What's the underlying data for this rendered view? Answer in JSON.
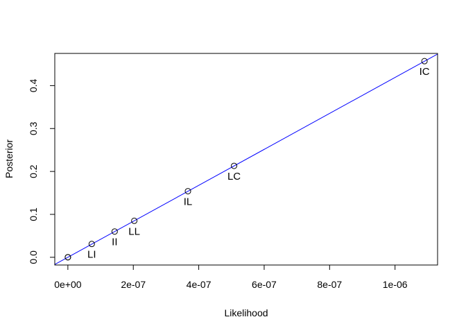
{
  "chart_data": {
    "type": "scatter",
    "title": "",
    "xlabel": "Likelihood",
    "ylabel": "Posterior",
    "xlim": [
      -4e-08,
      1.13e-06
    ],
    "ylim": [
      -0.018,
      0.475
    ],
    "x_ticks": [
      0,
      2e-07,
      4e-07,
      6e-07,
      8e-07,
      1e-06
    ],
    "x_tick_labels": [
      "0e+00",
      "2e-07",
      "4e-07",
      "6e-07",
      "8e-07",
      "1e-06"
    ],
    "y_ticks": [
      0.0,
      0.1,
      0.2,
      0.3,
      0.4
    ],
    "y_tick_labels": [
      "0.0",
      "0.1",
      "0.2",
      "0.3",
      "0.4"
    ],
    "grid": false,
    "legend": "none",
    "points": [
      {
        "label": "",
        "x": 0,
        "y": 0.0
      },
      {
        "label": "",
        "x": 1e-10,
        "y": 0.0002
      },
      {
        "label": "LI",
        "x": 7.3e-08,
        "y": 0.031
      },
      {
        "label": "II",
        "x": 1.43e-07,
        "y": 0.06
      },
      {
        "label": "LL",
        "x": 2.03e-07,
        "y": 0.085
      },
      {
        "label": "IL",
        "x": 3.67e-07,
        "y": 0.154
      },
      {
        "label": "LC",
        "x": 5.08e-07,
        "y": 0.213
      },
      {
        "label": "IC",
        "x": 1.09e-06,
        "y": 0.457
      }
    ],
    "fit_line": {
      "intercept": 0,
      "slope": 419000,
      "color": "#0000ff"
    },
    "point_color": "#000000"
  }
}
